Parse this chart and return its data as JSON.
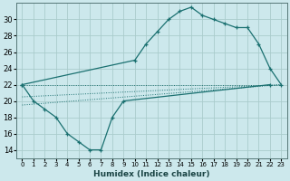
{
  "xlabel": "Humidex (Indice chaleur)",
  "bg_color": "#cce8ec",
  "grid_color": "#aacccc",
  "line_color": "#1a7070",
  "xlim": [
    -0.5,
    23.5
  ],
  "ylim": [
    13,
    32
  ],
  "xtick_labels": [
    "0",
    "1",
    "2",
    "3",
    "4",
    "5",
    "6",
    "7",
    "8",
    "9",
    "10",
    "11",
    "12",
    "13",
    "14",
    "15",
    "16",
    "17",
    "18",
    "19",
    "20",
    "21",
    "22",
    "23"
  ],
  "xtick_vals": [
    0,
    1,
    2,
    3,
    4,
    5,
    6,
    7,
    8,
    9,
    10,
    11,
    12,
    13,
    14,
    15,
    16,
    17,
    18,
    19,
    20,
    21,
    22,
    23
  ],
  "ytick_vals": [
    14,
    16,
    18,
    20,
    22,
    24,
    26,
    28,
    30
  ],
  "lower_x": [
    0,
    1,
    2,
    3,
    4,
    5,
    6,
    7,
    8,
    9,
    22
  ],
  "lower_y": [
    22,
    20,
    19,
    18,
    16,
    15,
    14,
    14,
    18,
    20,
    22
  ],
  "upper_x": [
    0,
    10,
    11,
    12,
    13,
    14,
    15,
    16,
    17,
    18,
    19,
    20,
    21,
    22,
    23
  ],
  "upper_y": [
    22,
    25,
    27,
    28.5,
    30,
    31,
    31.5,
    30.5,
    30,
    29.5,
    29,
    29,
    27,
    24,
    22
  ],
  "trend_lines": [
    {
      "x": [
        0,
        23
      ],
      "y": [
        22.0,
        22.0
      ]
    },
    {
      "x": [
        0,
        23
      ],
      "y": [
        20.5,
        22.0
      ]
    },
    {
      "x": [
        0,
        23
      ],
      "y": [
        19.5,
        22.0
      ]
    }
  ]
}
